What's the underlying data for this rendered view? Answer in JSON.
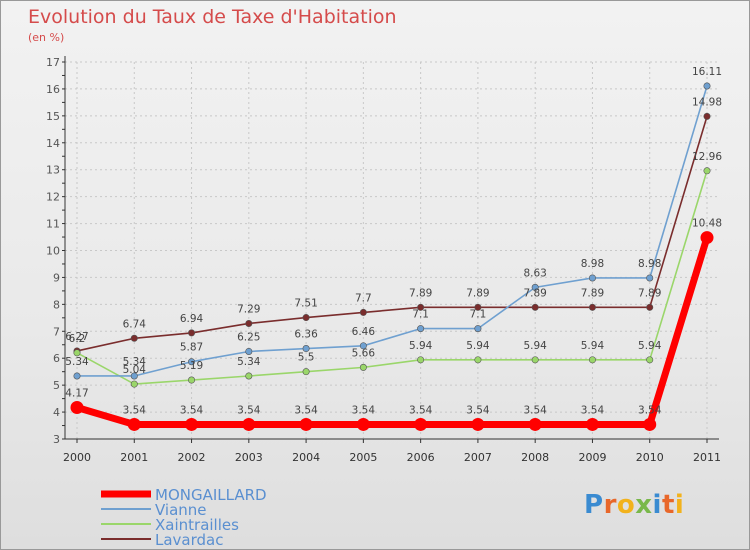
{
  "title": "Evolution du Taux de Taxe d'Habitation",
  "subtitle": "(en %)",
  "logo": {
    "text": "Proxiti",
    "letters": [
      "P",
      "r",
      "o",
      "x",
      "i",
      "t",
      "i"
    ],
    "colors": [
      "#3a8bd1",
      "#e8672a",
      "#f2b21c",
      "#79b84a",
      "#3a8bd1",
      "#e8672a",
      "#f2b21c"
    ]
  },
  "chart_data": {
    "type": "line",
    "x": [
      "2000",
      "2001",
      "2002",
      "2003",
      "2004",
      "2005",
      "2006",
      "2007",
      "2008",
      "2009",
      "2010",
      "2011"
    ],
    "ylim": [
      3,
      17
    ],
    "yticks": [
      3,
      4,
      5,
      6,
      7,
      8,
      9,
      10,
      11,
      12,
      13,
      14,
      15,
      16,
      17
    ],
    "grid": true,
    "legend_position": "bottom-left",
    "series": [
      {
        "name": "MONGAILLARD",
        "color": "#ff0000",
        "values": [
          4.17,
          3.54,
          3.54,
          3.54,
          3.54,
          3.54,
          3.54,
          3.54,
          3.54,
          3.54,
          3.54,
          10.48
        ],
        "labels": [
          "4.17",
          "3.54",
          "3.54",
          "3.54",
          "3.54",
          "3.54",
          "3.54",
          "3.54",
          "3.54",
          "3.54",
          "3.54",
          "10.48"
        ]
      },
      {
        "name": "Vianne",
        "color": "#6fa0d0",
        "values": [
          5.34,
          5.34,
          5.87,
          6.25,
          6.36,
          6.46,
          7.1,
          7.1,
          8.63,
          8.98,
          8.98,
          16.11
        ],
        "labels": [
          "5.34",
          "5.34",
          "5.87",
          "6.25",
          "6.36",
          "6.46",
          "7.1",
          "7.1",
          "8.63",
          "8.98",
          "8.98",
          "16.11"
        ]
      },
      {
        "name": "Xaintrailles",
        "color": "#9ad66a",
        "values": [
          6.2,
          5.04,
          5.19,
          5.34,
          5.5,
          5.66,
          5.94,
          5.94,
          5.94,
          5.94,
          5.94,
          12.96
        ],
        "labels": [
          "6.2",
          "5.04",
          "5.19",
          "5.34",
          "5.5",
          "5.66",
          "5.94",
          "5.94",
          "5.94",
          "5.94",
          "5.94",
          "12.96"
        ]
      },
      {
        "name": "Lavardac",
        "color": "#7a2d2d",
        "values": [
          6.27,
          6.74,
          6.94,
          7.29,
          7.51,
          7.7,
          7.89,
          7.89,
          7.89,
          7.89,
          7.89,
          14.98
        ],
        "labels": [
          "6.27",
          "6.74",
          "6.94",
          "7.29",
          "7.51",
          "7.7",
          "7.89",
          "7.89",
          "7.89",
          "7.89",
          "7.89",
          "14.98"
        ]
      }
    ]
  }
}
